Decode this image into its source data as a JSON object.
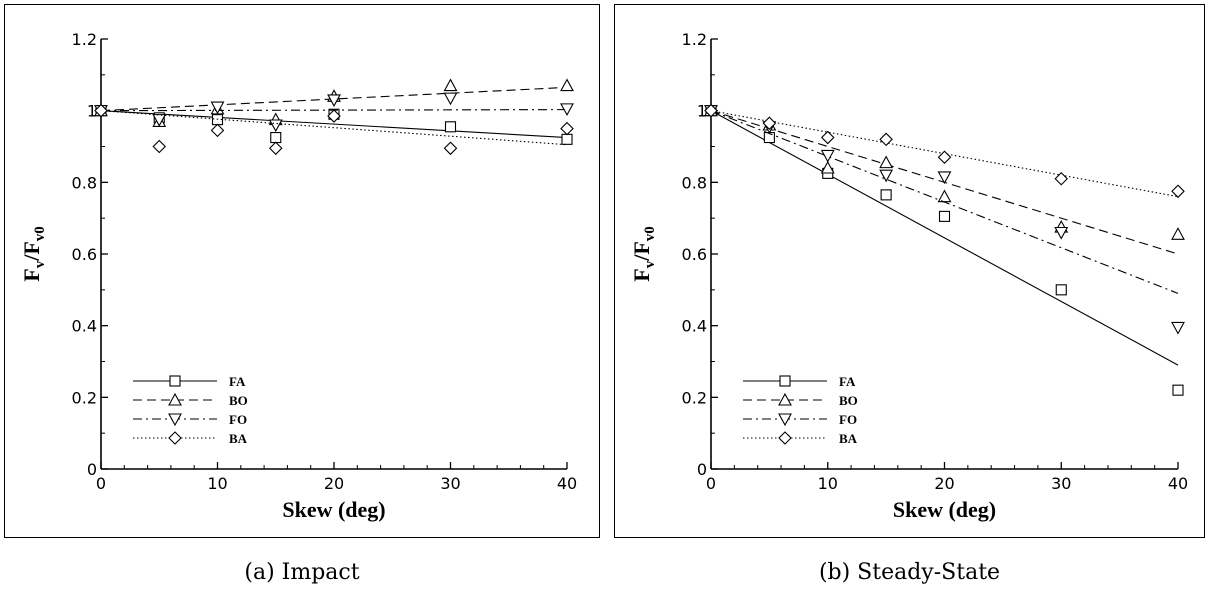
{
  "chart_data": [
    {
      "type": "scatter",
      "panel": "a",
      "caption": "(a) Impact",
      "xlabel": "Skew (deg)",
      "ylabel": "F",
      "xlim": [
        0,
        40
      ],
      "ylim": [
        0,
        1.2
      ],
      "xticks": [
        "0",
        "10",
        "20",
        "30",
        "40"
      ],
      "yticks": [
        "0",
        "0.2",
        "0.4",
        "0.6",
        "0.8",
        "1",
        "1.2"
      ],
      "grid": false,
      "legend_position": "bottom-left",
      "series": [
        {
          "name": "FA",
          "marker": "square",
          "line": "solid",
          "points": [
            [
              0,
              1.0
            ],
            [
              5,
              0.98
            ],
            [
              10,
              0.975
            ],
            [
              15,
              0.925
            ],
            [
              20,
              0.99
            ],
            [
              30,
              0.955
            ],
            [
              40,
              0.92
            ]
          ],
          "fit": [
            [
              0,
              1.0
            ],
            [
              40,
              0.925
            ]
          ]
        },
        {
          "name": "BO",
          "marker": "triangle-up",
          "line": "dashed",
          "points": [
            [
              0,
              1.0
            ],
            [
              5,
              0.97
            ],
            [
              10,
              1.005
            ],
            [
              15,
              0.975
            ],
            [
              20,
              1.04
            ],
            [
              30,
              1.07
            ],
            [
              40,
              1.07
            ]
          ],
          "fit": [
            [
              0,
              1.0
            ],
            [
              40,
              1.065
            ]
          ]
        },
        {
          "name": "FO",
          "marker": "triangle-down",
          "line": "dashdot",
          "points": [
            [
              0,
              1.0
            ],
            [
              5,
              0.975
            ],
            [
              10,
              1.01
            ],
            [
              15,
              0.96
            ],
            [
              20,
              1.03
            ],
            [
              30,
              1.035
            ],
            [
              40,
              1.005
            ]
          ],
          "fit": [
            [
              0,
              1.0
            ],
            [
              40,
              1.003
            ]
          ]
        },
        {
          "name": "BA",
          "marker": "diamond",
          "line": "dotted",
          "points": [
            [
              0,
              1.0
            ],
            [
              5,
              0.9
            ],
            [
              10,
              0.945
            ],
            [
              15,
              0.895
            ],
            [
              20,
              0.985
            ],
            [
              30,
              0.895
            ],
            [
              40,
              0.95
            ]
          ],
          "fit": [
            [
              0,
              1.0
            ],
            [
              40,
              0.905
            ]
          ]
        }
      ]
    },
    {
      "type": "scatter",
      "panel": "b",
      "caption": "(b) Steady-State",
      "xlabel": "Skew (deg)",
      "ylabel": "F",
      "xlim": [
        0,
        40
      ],
      "ylim": [
        0,
        1.2
      ],
      "xticks": [
        "0",
        "10",
        "20",
        "30",
        "40"
      ],
      "yticks": [
        "0",
        "0.2",
        "0.4",
        "0.6",
        "0.8",
        "1",
        "1.2"
      ],
      "grid": false,
      "legend_position": "bottom-left",
      "series": [
        {
          "name": "FA",
          "marker": "square",
          "line": "solid",
          "points": [
            [
              0,
              1.0
            ],
            [
              5,
              0.925
            ],
            [
              10,
              0.825
            ],
            [
              15,
              0.765
            ],
            [
              20,
              0.705
            ],
            [
              30,
              0.5
            ],
            [
              40,
              0.22
            ]
          ],
          "fit": [
            [
              0,
              1.0
            ],
            [
              40,
              0.29
            ]
          ]
        },
        {
          "name": "BO",
          "marker": "triangle-up",
          "line": "dashed",
          "points": [
            [
              0,
              1.0
            ],
            [
              5,
              0.96
            ],
            [
              10,
              0.84
            ],
            [
              15,
              0.855
            ],
            [
              20,
              0.76
            ],
            [
              30,
              0.675
            ],
            [
              40,
              0.655
            ]
          ],
          "fit": [
            [
              0,
              1.0
            ],
            [
              40,
              0.6
            ]
          ]
        },
        {
          "name": "FO",
          "marker": "triangle-down",
          "line": "dashdot",
          "points": [
            [
              0,
              1.0
            ],
            [
              5,
              0.955
            ],
            [
              10,
              0.875
            ],
            [
              15,
              0.82
            ],
            [
              20,
              0.815
            ],
            [
              30,
              0.66
            ],
            [
              40,
              0.395
            ]
          ],
          "fit": [
            [
              0,
              1.0
            ],
            [
              40,
              0.49
            ]
          ]
        },
        {
          "name": "BA",
          "marker": "diamond",
          "line": "dotted",
          "points": [
            [
              0,
              1.0
            ],
            [
              5,
              0.965
            ],
            [
              10,
              0.925
            ],
            [
              15,
              0.92
            ],
            [
              20,
              0.87
            ],
            [
              30,
              0.81
            ],
            [
              40,
              0.775
            ]
          ],
          "fit": [
            [
              0,
              1.0
            ],
            [
              40,
              0.76
            ]
          ]
        }
      ]
    }
  ],
  "label_parts": {
    "sub_v": "v",
    "slash_f": "/F",
    "sub_v0": "v0"
  },
  "style": {
    "line_color": "#000000",
    "background": "#ffffff"
  }
}
